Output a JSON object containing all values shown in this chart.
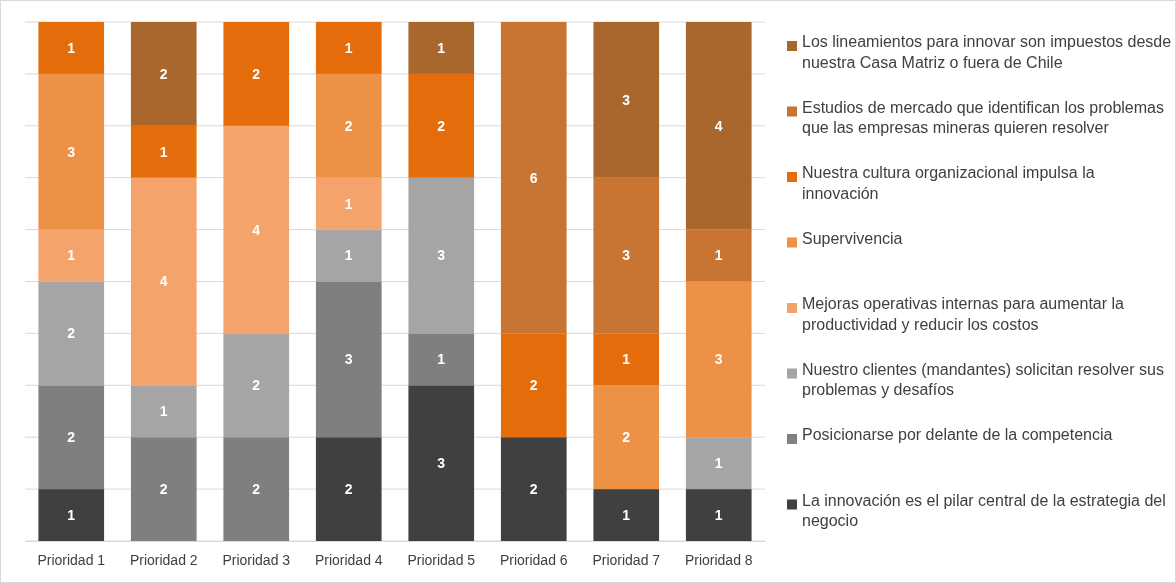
{
  "chart_data": {
    "type": "bar",
    "stacked": true,
    "categories": [
      "Prioridad 1",
      "Prioridad 2",
      "Prioridad 3",
      "Prioridad 4",
      "Prioridad 5",
      "Prioridad 6",
      "Prioridad 7",
      "Prioridad 8"
    ],
    "ylim": [
      0,
      10
    ],
    "yticks": [
      {
        "value": 0,
        "label": null
      },
      {
        "value": 1,
        "label": null
      },
      {
        "value": 2,
        "label": null
      },
      {
        "value": 3,
        "label": null
      },
      {
        "value": 4,
        "label": null
      },
      {
        "value": 5,
        "label": null
      },
      {
        "value": 6,
        "label": null
      },
      {
        "value": 7,
        "label": null
      },
      {
        "value": 8,
        "label": null
      },
      {
        "value": 9,
        "label": null
      },
      {
        "value": 10,
        "label": null
      }
    ],
    "tick_labels": "x",
    "grid": "y",
    "legend": "right",
    "data_labels": true,
    "series": [
      {
        "name": "La innovación es el pilar central de la estrategia del negocio",
        "color": "#404040",
        "values": [
          1,
          null,
          null,
          2,
          3,
          2,
          1,
          1
        ]
      },
      {
        "name": "Posicionarse por delante de la competencia",
        "color": "#7f7f7f",
        "values": [
          2,
          2,
          2,
          3,
          1,
          null,
          null,
          null
        ]
      },
      {
        "name": "Nuestro clientes (mandantes) solicitan resolver sus problemas y desafíos",
        "color": "#a5a5a5",
        "values": [
          2,
          1,
          2,
          1,
          3,
          null,
          null,
          1
        ]
      },
      {
        "name": "Mejoras operativas internas para aumentar la productividad y reducir los costos",
        "color": "#f4a46a",
        "values": [
          1,
          4,
          4,
          1,
          null,
          null,
          null,
          null
        ]
      },
      {
        "name": "Supervivencia",
        "color": "#ed9146",
        "values": [
          3,
          null,
          null,
          2,
          null,
          null,
          2,
          3
        ]
      },
      {
        "name": "Nuestra cultura organizacional impulsa la innovación",
        "color": "#e46c0a",
        "values": [
          1,
          1,
          2,
          1,
          2,
          2,
          1,
          null
        ]
      },
      {
        "name": "Estudios de mercado que identifican los problemas que las empresas mineras quieren resolver",
        "color": "#c87533",
        "values": [
          null,
          null,
          null,
          null,
          null,
          6,
          3,
          1
        ]
      },
      {
        "name": "Los lineamientos para innovar son impuestos desde nuestra Casa Matriz o fuera de Chile",
        "color": "#a9662d",
        "values": [
          null,
          2,
          null,
          null,
          1,
          null,
          3,
          4
        ]
      }
    ]
  }
}
